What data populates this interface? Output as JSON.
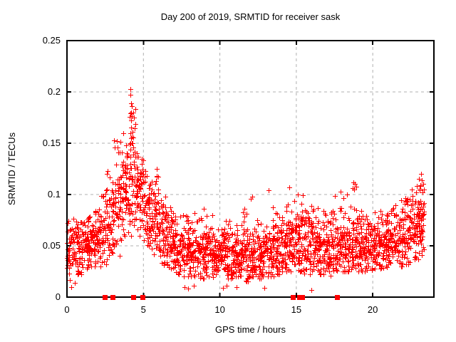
{
  "chart_data": {
    "type": "scatter",
    "title": "Day 200 of 2019, SRMTID for receiver sask",
    "xlabel": "GPS time / hours",
    "ylabel": "SRMTID / TECUs",
    "xlim": [
      0,
      24
    ],
    "ylim": [
      0,
      0.25
    ],
    "xticks": [
      0,
      5,
      10,
      15,
      20
    ],
    "xtick_labels": [
      "0",
      "5",
      "10",
      "15",
      "20"
    ],
    "yticks": [
      0,
      0.05,
      0.1,
      0.15,
      0.2,
      0.25
    ],
    "ytick_labels": [
      "0",
      "0.05",
      "0.1",
      "0.15",
      "0.2",
      "0.25"
    ],
    "grid": {
      "on": true,
      "color": "#b0b0b0",
      "dash": "4 4"
    },
    "axis_color": "#000000",
    "background": "#ffffff",
    "marker": {
      "shape": "plus",
      "color": "#ff0000",
      "size": 7
    },
    "seed": 1375,
    "density_profile_note": "bins: [hour_start, hour_end, n_points, mean, sd, min, max] of SRMTID/TECUs",
    "density_profile": [
      [
        0.0,
        0.5,
        55,
        0.048,
        0.013,
        0.015,
        0.08
      ],
      [
        0.5,
        1.0,
        55,
        0.047,
        0.012,
        0.02,
        0.075
      ],
      [
        1.0,
        1.5,
        55,
        0.05,
        0.012,
        0.028,
        0.08
      ],
      [
        1.5,
        2.0,
        55,
        0.054,
        0.012,
        0.03,
        0.085
      ],
      [
        2.0,
        2.5,
        55,
        0.058,
        0.014,
        0.03,
        0.1
      ],
      [
        2.5,
        3.0,
        55,
        0.07,
        0.018,
        0.032,
        0.125
      ],
      [
        3.0,
        3.5,
        55,
        0.085,
        0.022,
        0.04,
        0.155
      ],
      [
        3.5,
        4.0,
        60,
        0.108,
        0.024,
        0.055,
        0.17
      ],
      [
        4.0,
        4.5,
        60,
        0.118,
        0.028,
        0.06,
        0.186
      ],
      [
        4.5,
        5.0,
        60,
        0.098,
        0.019,
        0.06,
        0.145
      ],
      [
        5.0,
        5.5,
        55,
        0.086,
        0.018,
        0.05,
        0.13
      ],
      [
        5.5,
        6.0,
        55,
        0.076,
        0.017,
        0.04,
        0.126
      ],
      [
        6.0,
        6.5,
        55,
        0.061,
        0.014,
        0.03,
        0.1
      ],
      [
        6.5,
        7.0,
        55,
        0.052,
        0.013,
        0.028,
        0.09
      ],
      [
        7.0,
        7.5,
        55,
        0.046,
        0.012,
        0.022,
        0.08
      ],
      [
        7.5,
        8.0,
        55,
        0.044,
        0.012,
        0.02,
        0.08
      ],
      [
        8.0,
        8.5,
        55,
        0.042,
        0.012,
        0.02,
        0.085
      ],
      [
        8.5,
        9.0,
        55,
        0.043,
        0.013,
        0.018,
        0.09
      ],
      [
        9.0,
        9.5,
        55,
        0.042,
        0.012,
        0.02,
        0.08
      ],
      [
        9.5,
        10.0,
        55,
        0.04,
        0.012,
        0.018,
        0.09
      ],
      [
        10.0,
        10.5,
        55,
        0.04,
        0.012,
        0.02,
        0.08
      ],
      [
        10.5,
        11.0,
        55,
        0.038,
        0.011,
        0.018,
        0.075
      ],
      [
        11.0,
        11.5,
        55,
        0.039,
        0.012,
        0.02,
        0.08
      ],
      [
        11.5,
        12.0,
        55,
        0.04,
        0.013,
        0.015,
        0.09
      ],
      [
        12.0,
        12.5,
        55,
        0.042,
        0.014,
        0.02,
        0.1
      ],
      [
        12.5,
        13.0,
        55,
        0.04,
        0.012,
        0.018,
        0.085
      ],
      [
        13.0,
        13.5,
        55,
        0.045,
        0.014,
        0.02,
        0.105
      ],
      [
        13.5,
        14.0,
        55,
        0.047,
        0.014,
        0.022,
        0.09
      ],
      [
        14.0,
        14.5,
        55,
        0.05,
        0.015,
        0.025,
        0.1
      ],
      [
        14.5,
        15.0,
        55,
        0.055,
        0.016,
        0.025,
        0.107
      ],
      [
        15.0,
        15.5,
        55,
        0.055,
        0.016,
        0.025,
        0.1
      ],
      [
        15.5,
        16.0,
        55,
        0.052,
        0.015,
        0.022,
        0.095
      ],
      [
        16.0,
        16.5,
        55,
        0.048,
        0.014,
        0.02,
        0.09
      ],
      [
        16.5,
        17.0,
        55,
        0.047,
        0.013,
        0.022,
        0.085
      ],
      [
        17.0,
        17.5,
        55,
        0.048,
        0.014,
        0.02,
        0.09
      ],
      [
        17.5,
        18.0,
        55,
        0.05,
        0.014,
        0.022,
        0.1
      ],
      [
        18.0,
        18.5,
        55,
        0.052,
        0.015,
        0.025,
        0.105
      ],
      [
        18.5,
        19.0,
        55,
        0.052,
        0.015,
        0.025,
        0.112
      ],
      [
        19.0,
        19.5,
        55,
        0.048,
        0.013,
        0.025,
        0.085
      ],
      [
        19.5,
        20.0,
        55,
        0.048,
        0.013,
        0.025,
        0.085
      ],
      [
        20.0,
        20.5,
        55,
        0.05,
        0.013,
        0.028,
        0.085
      ],
      [
        20.5,
        21.0,
        55,
        0.052,
        0.013,
        0.028,
        0.09
      ],
      [
        21.0,
        21.5,
        55,
        0.055,
        0.014,
        0.03,
        0.09
      ],
      [
        21.5,
        22.0,
        55,
        0.058,
        0.015,
        0.03,
        0.095
      ],
      [
        22.0,
        22.5,
        55,
        0.062,
        0.016,
        0.032,
        0.1
      ],
      [
        22.5,
        23.0,
        55,
        0.068,
        0.017,
        0.035,
        0.11
      ],
      [
        23.0,
        23.35,
        60,
        0.075,
        0.018,
        0.04,
        0.12
      ]
    ],
    "outlier_points": [
      [
        4.17,
        0.203
      ],
      [
        4.17,
        0.197
      ],
      [
        4.18,
        0.189
      ],
      [
        4.19,
        0.18
      ],
      [
        4.16,
        0.179
      ],
      [
        4.2,
        0.172
      ],
      [
        4.21,
        0.165
      ],
      [
        4.15,
        0.16
      ],
      [
        4.22,
        0.156
      ],
      [
        4.13,
        0.15
      ],
      [
        3.28,
        0.152
      ],
      [
        3.31,
        0.146
      ],
      [
        3.35,
        0.141
      ],
      [
        4.9,
        0.13
      ],
      [
        4.92,
        0.124
      ],
      [
        5.86,
        0.125
      ],
      [
        5.88,
        0.118
      ],
      [
        5.84,
        0.113
      ],
      [
        12.1,
        0.098
      ],
      [
        13.2,
        0.104
      ],
      [
        14.55,
        0.107
      ],
      [
        15.08,
        0.1
      ],
      [
        17.9,
        0.103
      ],
      [
        18.74,
        0.112
      ],
      [
        18.76,
        0.105
      ],
      [
        18.3,
        0.1
      ],
      [
        22.9,
        0.108
      ],
      [
        23.1,
        0.109
      ],
      [
        23.15,
        0.12
      ],
      [
        23.2,
        0.114
      ],
      [
        0.28,
        0.01
      ],
      [
        0.5,
        0.014
      ],
      [
        7.7,
        0.01
      ],
      [
        7.92,
        0.008
      ],
      [
        8.3,
        0.011
      ],
      [
        10.2,
        0.009
      ],
      [
        10.42,
        0.011
      ],
      [
        11.1,
        0.01
      ],
      [
        12.9,
        0.009
      ],
      [
        16.0,
        0.007
      ]
    ],
    "baseline_square_markers_hours": [
      2.46,
      2.97,
      4.32,
      4.96,
      14.77,
      15.2,
      15.38,
      17.64
    ]
  }
}
